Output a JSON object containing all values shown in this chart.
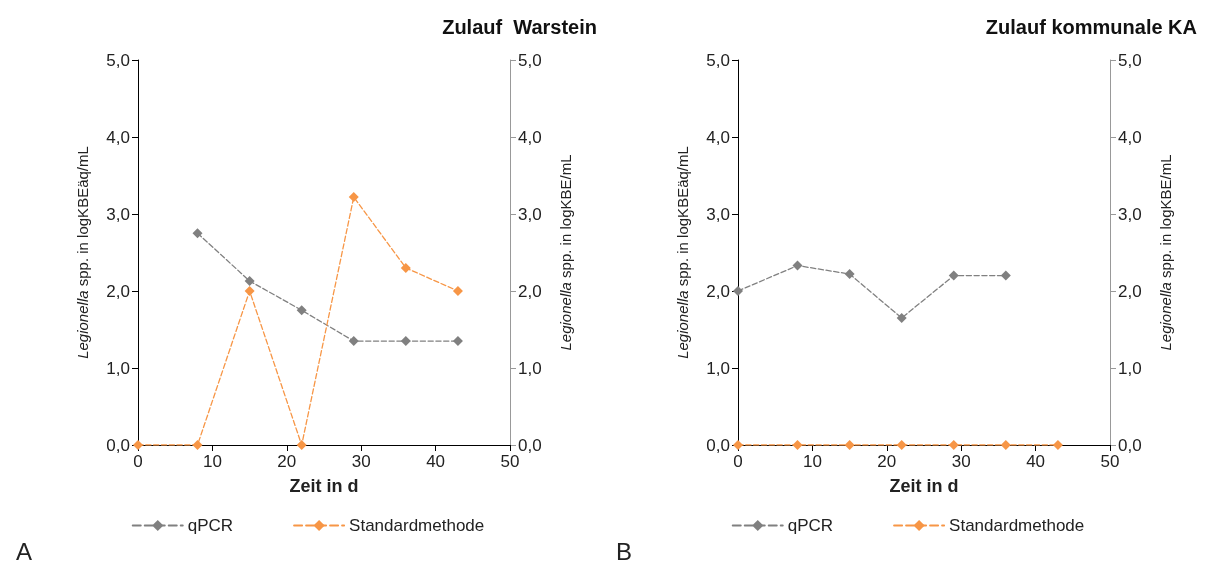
{
  "chart_data": [
    {
      "type": "line",
      "title": "Zulauf  Warstein",
      "xlabel": "Zeit in d",
      "ylabel": "Legionella spp. in logKBEäq/mL",
      "y2label": "Legionella spp. in logKBE/mL",
      "annotations": [
        "A"
      ],
      "x": [
        0,
        8,
        15,
        22,
        29,
        36,
        43
      ],
      "series": [
        {
          "name": "qPCR",
          "color": "#808080",
          "values": [
            null,
            2.75,
            2.13,
            1.75,
            1.35,
            1.35,
            1.35
          ]
        },
        {
          "name": "Standardmethode",
          "color": "#f79646",
          "axis": "y2",
          "values": [
            0,
            0,
            2.0,
            0,
            3.22,
            2.3,
            2.0
          ]
        }
      ],
      "xlim": [
        0,
        50
      ],
      "xticks": [
        0,
        10,
        20,
        30,
        40,
        50
      ],
      "ylim": [
        0,
        5
      ],
      "yticks": [
        {
          "value": 0,
          "label": "0,0"
        },
        {
          "value": 1,
          "label": "1,0"
        },
        {
          "value": 2,
          "label": "2,0"
        },
        {
          "value": 3,
          "label": "3,0"
        },
        {
          "value": 4,
          "label": "4,0"
        },
        {
          "value": 5,
          "label": "5,0"
        }
      ],
      "y2lim": [
        0,
        5
      ],
      "y2ticks": [
        {
          "value": 0,
          "label": "0,0"
        },
        {
          "value": 1,
          "label": "1,0"
        },
        {
          "value": 2,
          "label": "2,0"
        },
        {
          "value": 3,
          "label": "3,0"
        },
        {
          "value": 4,
          "label": "4,0"
        },
        {
          "value": 5,
          "label": "5,0"
        }
      ],
      "legend": "bottom",
      "marker": "diamond",
      "line_style": "dashed"
    },
    {
      "type": "line",
      "title": "Zulauf kommunale KA",
      "xlabel": "Zeit in d",
      "ylabel": "Legionella spp. in logKBEäq/mL",
      "y2label": "Legionella spp. in logKBE/mL",
      "annotations": [
        "B"
      ],
      "x": [
        0,
        8,
        15,
        22,
        29,
        36,
        43
      ],
      "series": [
        {
          "name": "qPCR",
          "color": "#808080",
          "values": [
            2.0,
            2.33,
            2.22,
            1.65,
            2.2,
            2.2,
            null
          ]
        },
        {
          "name": "Standardmethode",
          "color": "#f79646",
          "axis": "y2",
          "values": [
            0,
            0,
            0,
            0,
            0,
            0,
            0
          ]
        }
      ],
      "xlim": [
        0,
        50
      ],
      "xticks": [
        0,
        10,
        20,
        30,
        40,
        50
      ],
      "ylim": [
        0,
        5
      ],
      "yticks": [
        {
          "value": 0,
          "label": "0,0"
        },
        {
          "value": 1,
          "label": "1,0"
        },
        {
          "value": 2,
          "label": "2,0"
        },
        {
          "value": 3,
          "label": "3,0"
        },
        {
          "value": 4,
          "label": "4,0"
        },
        {
          "value": 5,
          "label": "5,0"
        }
      ],
      "y2lim": [
        0,
        5
      ],
      "y2ticks": [
        {
          "value": 0,
          "label": "0,0"
        },
        {
          "value": 1,
          "label": "1,0"
        },
        {
          "value": 2,
          "label": "2,0"
        },
        {
          "value": 3,
          "label": "3,0"
        },
        {
          "value": 4,
          "label": "4,0"
        },
        {
          "value": 5,
          "label": "5,0"
        }
      ],
      "legend": "bottom",
      "marker": "diamond",
      "line_style": "dashed"
    }
  ]
}
